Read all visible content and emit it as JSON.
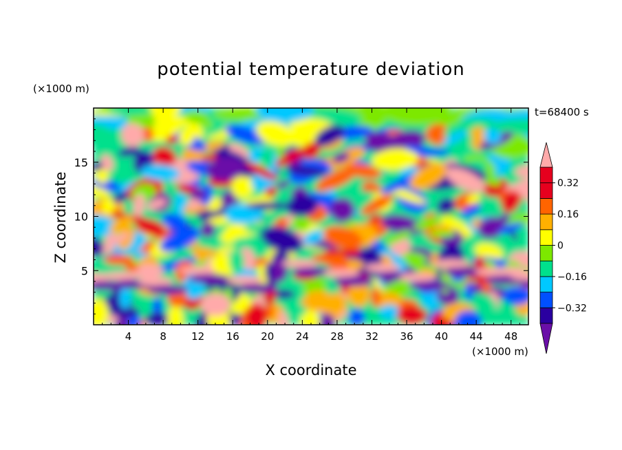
{
  "chart_data": {
    "type": "heatmap",
    "title": "potential temperature deviation",
    "xlabel": "X coordinate",
    "ylabel": "Z coordinate",
    "x_unit": "(×1000 m)",
    "y_unit": "(×1000 m)",
    "time_label": "t=68400 s",
    "xlim": [
      0,
      50
    ],
    "ylim": [
      0,
      20
    ],
    "x_ticks": [
      4,
      8,
      12,
      16,
      20,
      24,
      28,
      32,
      36,
      40,
      44,
      48
    ],
    "y_ticks": [
      5,
      10,
      15
    ],
    "colorbar": {
      "levels": [
        -0.4,
        -0.32,
        -0.24,
        -0.16,
        -0.08,
        0,
        0.08,
        0.16,
        0.24,
        0.32,
        0.4
      ],
      "labeled_values": [
        0.32,
        0.16,
        0,
        -0.16,
        -0.32
      ],
      "labels": [
        "0.32",
        "0.16",
        "0",
        "−0.16",
        "−0.32"
      ],
      "colors": [
        "#6a0fa8",
        "#2a00a0",
        "#0050ff",
        "#00c8ff",
        "#00e08c",
        "#7de800",
        "#ffff00",
        "#ffb000",
        "#ff6400",
        "#e6001e",
        "#ffaaaa"
      ]
    }
  }
}
